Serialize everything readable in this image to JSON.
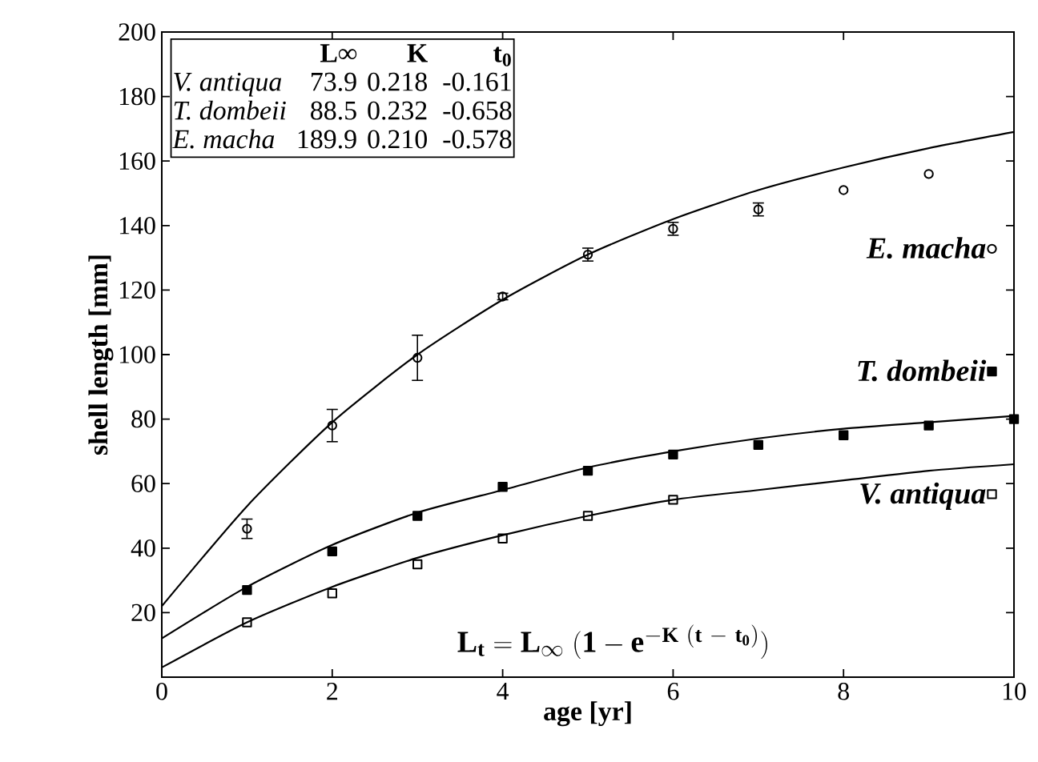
{
  "chart_data": {
    "type": "scatter",
    "xlabel": "age [yr]",
    "ylabel": "shell length [mm]",
    "legend": "right",
    "xlim": [
      0,
      10
    ],
    "ylim": [
      0,
      200
    ],
    "xticks": [
      0,
      2,
      4,
      6,
      8,
      10
    ],
    "yticks": [
      {
        "value": 0,
        "label": null
      },
      20,
      40,
      60,
      80,
      100,
      120,
      140,
      160,
      180,
      200
    ],
    "series": [
      {
        "name": "E. macha",
        "marker": "circle",
        "color": "#000000",
        "x": [
          1,
          2,
          3,
          4,
          5,
          6,
          7,
          8,
          9
        ],
        "values": [
          46,
          78,
          99,
          118,
          131,
          139,
          145,
          151,
          156
        ],
        "errors": [
          3,
          5,
          7,
          1,
          2,
          2,
          2,
          null,
          null
        ]
      },
      {
        "name": "T. dombeii",
        "marker": "square",
        "color": "#000000",
        "x": [
          1,
          2,
          3,
          4,
          5,
          6,
          7,
          8,
          9,
          10
        ],
        "values": [
          27,
          39,
          50,
          59,
          64,
          69,
          72,
          75,
          78,
          80
        ]
      },
      {
        "name": "V. antiqua",
        "marker": "square",
        "color": "#000000",
        "x": [
          1,
          2,
          3,
          4,
          5,
          6
        ],
        "values": [
          17,
          26,
          35,
          43,
          50,
          55
        ]
      },
      {
        "type": "line",
        "marker": "none",
        "color": "#000000",
        "x": [
          0,
          1,
          2,
          3,
          4,
          5,
          6,
          7,
          8,
          9,
          10
        ],
        "values": [
          22,
          53,
          79,
          100,
          117,
          131,
          142,
          151,
          158,
          164,
          169
        ]
      },
      {
        "type": "line",
        "marker": "none",
        "color": "#000000",
        "x": [
          0,
          1,
          2,
          3,
          4,
          5,
          6,
          7,
          8,
          9,
          10
        ],
        "values": [
          12,
          28,
          41,
          51,
          58,
          65,
          70,
          74,
          77,
          79,
          81
        ]
      },
      {
        "type": "line",
        "marker": "none",
        "color": "#000000",
        "x": [
          0,
          1,
          2,
          3,
          4,
          5,
          6,
          7,
          8,
          9,
          10
        ],
        "values": [
          3,
          17,
          28,
          37,
          44,
          50,
          55,
          58,
          61,
          64,
          66
        ]
      }
    ],
    "annotations": [
      "L∞",
      "K",
      "t$_{0}$",
      "V. antiqua",
      "73.9",
      "0.218",
      "-0.161",
      "T. dombeii",
      "88.5",
      "0.232",
      "-0.658",
      "E. macha",
      "189.9",
      "0.210",
      "-0.578",
      "\\mathbf{L_t = L_\\infty\\ (1 - e^{-K\\ (t\\ -\\ t_0)})}"
    ]
  }
}
